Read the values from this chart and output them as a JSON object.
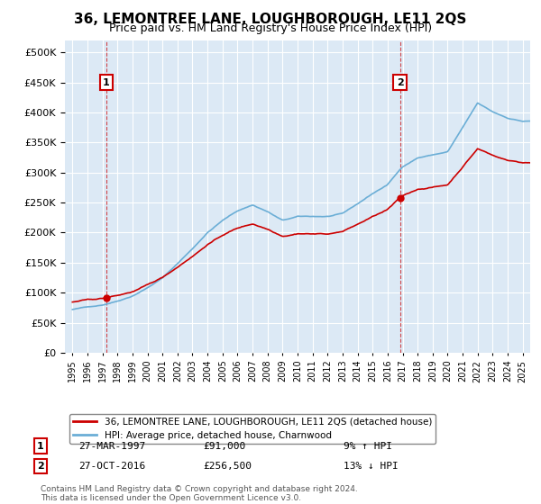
{
  "title": "36, LEMONTREE LANE, LOUGHBOROUGH, LE11 2QS",
  "subtitle": "Price paid vs. HM Land Registry's House Price Index (HPI)",
  "plot_bg_color": "#dce9f5",
  "red_line_label": "36, LEMONTREE LANE, LOUGHBOROUGH, LE11 2QS (detached house)",
  "blue_line_label": "HPI: Average price, detached house, Charnwood",
  "purchase1_date": "27-MAR-1997",
  "purchase1_price": 91000,
  "purchase1_pct": "9% ↑ HPI",
  "purchase2_date": "27-OCT-2016",
  "purchase2_price": 256500,
  "purchase2_pct": "13% ↓ HPI",
  "copyright": "Contains HM Land Registry data © Crown copyright and database right 2024.\nThis data is licensed under the Open Government Licence v3.0.",
  "years": [
    1995,
    1996,
    1997,
    1998,
    1999,
    2000,
    2001,
    2002,
    2003,
    2004,
    2005,
    2006,
    2007,
    2008,
    2009,
    2010,
    2011,
    2012,
    2013,
    2014,
    2015,
    2016,
    2017,
    2018,
    2019,
    2020,
    2021,
    2022,
    2023,
    2024,
    2025
  ],
  "hpi_values": [
    72000,
    76000,
    80000,
    87000,
    96000,
    110000,
    126000,
    150000,
    175000,
    202000,
    222000,
    238000,
    248000,
    237000,
    222000,
    228000,
    228000,
    228000,
    232000,
    248000,
    265000,
    280000,
    310000,
    325000,
    330000,
    335000,
    375000,
    415000,
    400000,
    390000,
    385000
  ],
  "p1_year": 1997.25,
  "p1_price": 91000,
  "p2_year": 2016.82,
  "p2_price": 256500,
  "ylim_max": 520000,
  "xlim_min": 1994.5,
  "xlim_max": 2025.5
}
